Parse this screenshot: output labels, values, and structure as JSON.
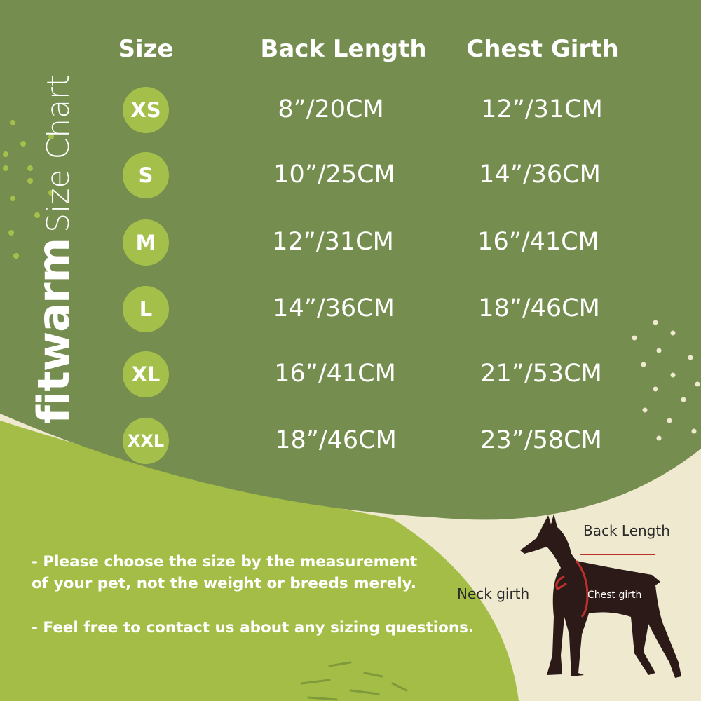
{
  "colors": {
    "dark_green": "#758d4e",
    "light_green": "#a3bd46",
    "cream": "#efe9cf",
    "circle": "#a5c04a"
  },
  "brand": {
    "name": "fitwarm",
    "subtitle": "Size Chart"
  },
  "table": {
    "headers": {
      "size": "Size",
      "back_length": "Back Length",
      "chest_girth": "Chest Girth"
    },
    "rows": [
      {
        "size": "XS",
        "back_length": "8”/20CM",
        "chest_girth": "12”/31CM"
      },
      {
        "size": "S",
        "back_length": "10”/25CM",
        "chest_girth": "14”/36CM"
      },
      {
        "size": "M",
        "back_length": "12”/31CM",
        "chest_girth": "16”/41CM"
      },
      {
        "size": "L",
        "back_length": "14”/36CM",
        "chest_girth": "18”/46CM"
      },
      {
        "size": "XL",
        "back_length": "16”/41CM",
        "chest_girth": "21”/53CM"
      },
      {
        "size": "XXL",
        "back_length": "18”/46CM",
        "chest_girth": "23”/58CM"
      }
    ]
  },
  "notes": {
    "line1": "- Please choose the size by the measurement",
    "line2": "of your pet, not the weight or breeds merely.",
    "line3": "- Feel free to contact us about any sizing questions."
  },
  "diagram": {
    "back_length": "Back Length",
    "neck_girth": "Neck girth",
    "chest_girth": "Chest girth"
  }
}
